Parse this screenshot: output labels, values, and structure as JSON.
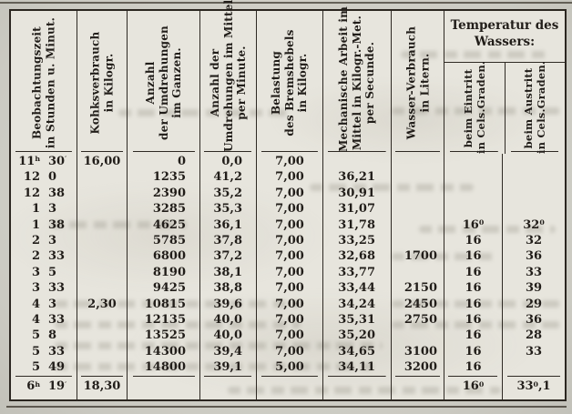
{
  "table": {
    "temperature_group_title_lines": [
      "Temperatur des",
      "Wassers:"
    ],
    "columns": [
      {
        "key": "zeit",
        "align": "time",
        "header_lines": [
          "Beobachtungszeit",
          "in Stunden u. Minut."
        ]
      },
      {
        "key": "kohks",
        "align": "center",
        "header_lines": [
          "Kohksverbrauch",
          "in Kilogr."
        ]
      },
      {
        "key": "umdrehungen_ganzen",
        "align": "right",
        "header_lines": [
          "Anzahl",
          "der Umdrehungen",
          "im Ganzen."
        ]
      },
      {
        "key": "umdrehungen_mittel",
        "align": "right",
        "header_lines": [
          "Anzahl der",
          "Umdrehungen im Mittel",
          "per Minute."
        ]
      },
      {
        "key": "belastung",
        "align": "center",
        "header_lines": [
          "Belastung",
          "des Bremshebels",
          "in Kilogr."
        ]
      },
      {
        "key": "arbeit",
        "align": "right",
        "header_lines": [
          "Mechanische Arbeit im",
          "Mittel in Kilogr.-Met.",
          "per Secunde."
        ]
      },
      {
        "key": "wasser",
        "align": "right",
        "header_lines": [
          "Wasser-Verbrauch",
          "in Litern."
        ]
      },
      {
        "key": "eintritt",
        "align": "center",
        "group": "temperatur",
        "header_lines": [
          "beim Eintritt",
          "in Cels.Graden."
        ]
      },
      {
        "key": "austritt",
        "align": "center",
        "group": "temperatur",
        "header_lines": [
          "beim Austritt",
          "in Cels.Graden."
        ]
      }
    ],
    "rows": [
      {
        "zeit_h": "11^h",
        "zeit_m": "30^′",
        "kohks": "16,00",
        "umdrehungen_ganzen": "0",
        "umdrehungen_mittel": "0,0",
        "belastung": "7,00",
        "arbeit": "",
        "wasser": "",
        "eintritt": "",
        "austritt": ""
      },
      {
        "zeit_h": "12",
        "zeit_m": "0",
        "kohks": "",
        "umdrehungen_ganzen": "1235",
        "umdrehungen_mittel": "41,2",
        "belastung": "7,00",
        "arbeit": "36,21",
        "wasser": "",
        "eintritt": "",
        "austritt": ""
      },
      {
        "zeit_h": "12",
        "zeit_m": "38",
        "kohks": "",
        "umdrehungen_ganzen": "2390",
        "umdrehungen_mittel": "35,2",
        "belastung": "7,00",
        "arbeit": "30,91",
        "wasser": "",
        "eintritt": "",
        "austritt": ""
      },
      {
        "zeit_h": "1",
        "zeit_m": "3",
        "kohks": "",
        "umdrehungen_ganzen": "3285",
        "umdrehungen_mittel": "35,3",
        "belastung": "7,00",
        "arbeit": "31,07",
        "wasser": "",
        "eintritt": "",
        "austritt": ""
      },
      {
        "zeit_h": "1",
        "zeit_m": "38",
        "kohks": "",
        "umdrehungen_ganzen": "4625",
        "umdrehungen_mittel": "36,1",
        "belastung": "7,00",
        "arbeit": "31,78",
        "wasser": "",
        "eintritt": "16^0",
        "austritt": "32^0"
      },
      {
        "zeit_h": "2",
        "zeit_m": "3",
        "kohks": "",
        "umdrehungen_ganzen": "5785",
        "umdrehungen_mittel": "37,8",
        "belastung": "7,00",
        "arbeit": "33,25",
        "wasser": "",
        "eintritt": "16",
        "austritt": "32"
      },
      {
        "zeit_h": "2",
        "zeit_m": "33",
        "kohks": "",
        "umdrehungen_ganzen": "6800",
        "umdrehungen_mittel": "37,2",
        "belastung": "7,00",
        "arbeit": "32,68",
        "wasser": "1700",
        "eintritt": "16",
        "austritt": "36"
      },
      {
        "zeit_h": "3",
        "zeit_m": "5",
        "kohks": "",
        "umdrehungen_ganzen": "8190",
        "umdrehungen_mittel": "38,1",
        "belastung": "7,00",
        "arbeit": "33,77",
        "wasser": "",
        "eintritt": "16",
        "austritt": "33"
      },
      {
        "zeit_h": "3",
        "zeit_m": "33",
        "kohks": "",
        "umdrehungen_ganzen": "9425",
        "umdrehungen_mittel": "38,8",
        "belastung": "7,00",
        "arbeit": "33,44",
        "wasser": "2150",
        "eintritt": "16",
        "austritt": "39"
      },
      {
        "zeit_h": "4",
        "zeit_m": "3",
        "kohks": "2,30",
        "umdrehungen_ganzen": "10815",
        "umdrehungen_mittel": "39,6",
        "belastung": "7,00",
        "arbeit": "34,24",
        "wasser": "2450",
        "eintritt": "16",
        "austritt": "29"
      },
      {
        "zeit_h": "4",
        "zeit_m": "33",
        "kohks": "",
        "umdrehungen_ganzen": "12135",
        "umdrehungen_mittel": "40,0",
        "belastung": "7,00",
        "arbeit": "35,31",
        "wasser": "2750",
        "eintritt": "16",
        "austritt": "36"
      },
      {
        "zeit_h": "5",
        "zeit_m": "8",
        "kohks": "",
        "umdrehungen_ganzen": "13525",
        "umdrehungen_mittel": "40,0",
        "belastung": "7,00",
        "arbeit": "35,20",
        "wasser": "",
        "eintritt": "16",
        "austritt": "28"
      },
      {
        "zeit_h": "5",
        "zeit_m": "33",
        "kohks": "",
        "umdrehungen_ganzen": "14300",
        "umdrehungen_mittel": "39,4",
        "belastung": "7,00",
        "arbeit": "34,65",
        "wasser": "3100",
        "eintritt": "16",
        "austritt": "33"
      },
      {
        "zeit_h": "5",
        "zeit_m": "49",
        "kohks": "",
        "umdrehungen_ganzen": "14800",
        "umdrehungen_mittel": "39,1",
        "belastung": "5,00",
        "arbeit": "34,11",
        "wasser": "3200",
        "eintritt": "16",
        "austritt": ""
      }
    ],
    "footer": {
      "zeit_h": "6^h",
      "zeit_m": "19^′",
      "kohks": "18,30",
      "umdrehungen_ganzen": "",
      "umdrehungen_mittel": "",
      "belastung": "",
      "arbeit": "",
      "wasser": "",
      "eintritt": "16^0",
      "austritt": "33^0,1"
    }
  },
  "colors": {
    "ink": "#211d19",
    "rule": "#2e2923",
    "paper": "#e7e5dd"
  }
}
